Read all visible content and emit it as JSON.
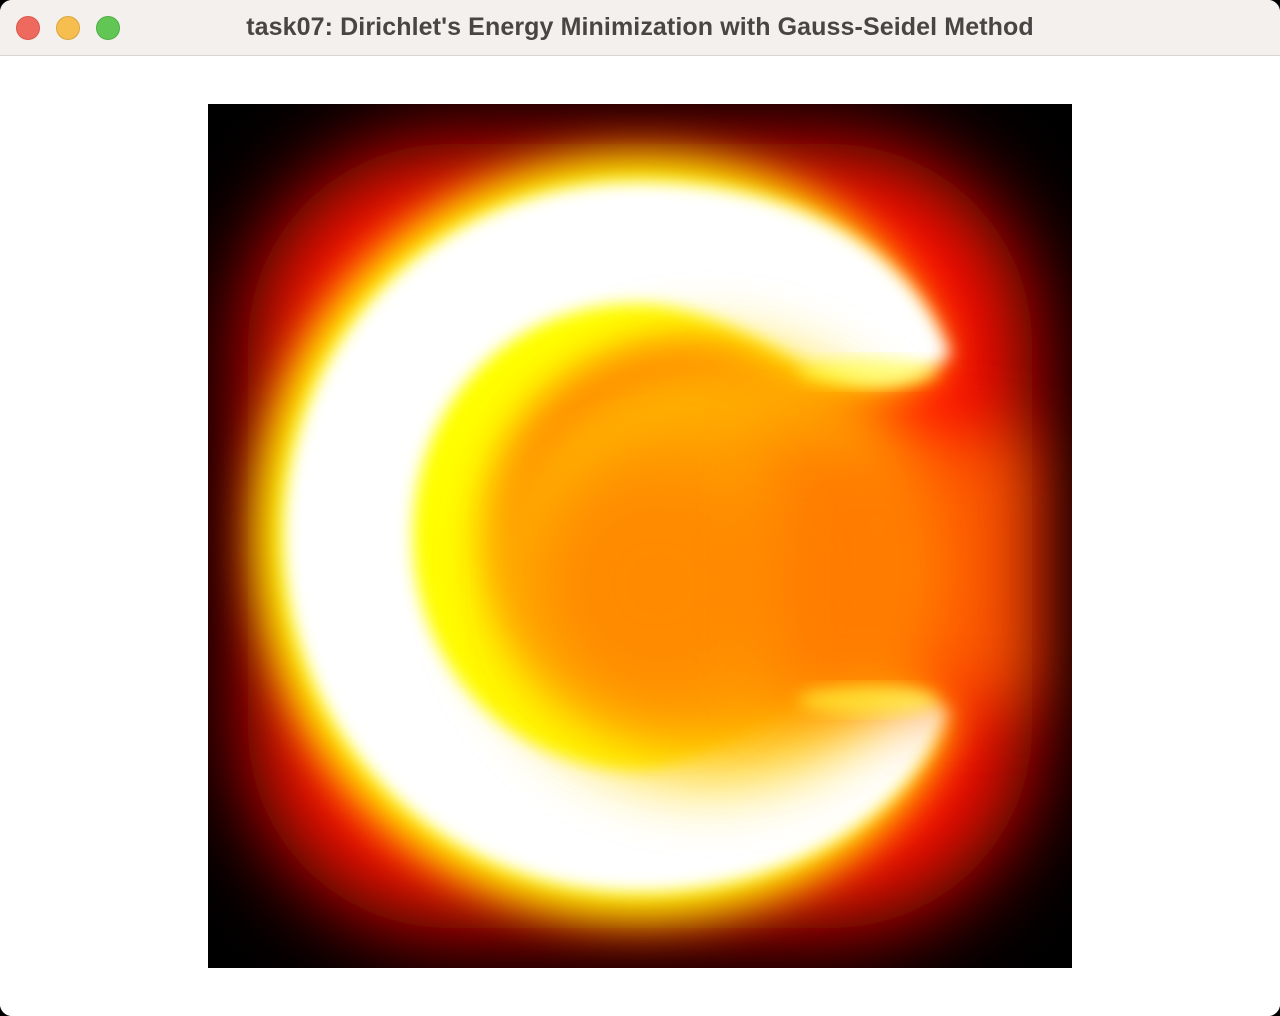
{
  "window": {
    "title": "task07: Dirichlet's Energy Minimization with Gauss-Seidel Method"
  },
  "traffic_lights": {
    "close_color": "#ee6a5f",
    "minimize_color": "#f5be4f",
    "zoom_color": "#62c655"
  },
  "visualization": {
    "colormap": [
      "#000000",
      "#ff0000",
      "#ffff00",
      "#ffffff"
    ],
    "interior_color": "#ff8800"
  }
}
